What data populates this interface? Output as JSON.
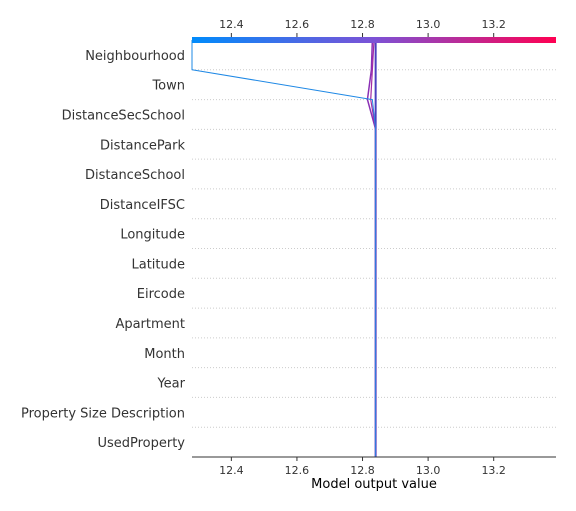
{
  "chart_data": {
    "type": "line",
    "title": "",
    "xlabel": "Model output value",
    "ylabel": "",
    "xlim": [
      12.28,
      13.39
    ],
    "xticks": [
      "12.4",
      "12.6",
      "12.8",
      "13.0",
      "13.2"
    ],
    "features": [
      "Neighbourhood",
      "Town",
      "DistanceSecSchool",
      "DistancePark",
      "DistanceSchool",
      "DistanceIFSC",
      "Longitude",
      "Latitude",
      "Eircode",
      "Apartment",
      "Month",
      "Year",
      "Property Size Description",
      "UsedProperty"
    ],
    "base_value": 12.84,
    "grid": "dotted-horizontal",
    "colorbar": {
      "position": "top",
      "low_color": "#008bfb",
      "mid_color": "#7c52d6",
      "high_color": "#ff0052"
    },
    "series": [
      {
        "values": [
          12.84,
          12.84,
          12.84,
          12.84,
          12.84,
          12.84,
          12.84,
          12.84,
          12.84,
          12.84,
          12.84,
          12.84,
          12.84,
          12.84,
          12.84
        ],
        "color": "#4b3fbf",
        "width": 2
      },
      {
        "values": [
          12.84,
          12.84,
          12.84,
          12.84,
          12.84,
          12.84,
          12.84,
          12.84,
          12.84,
          12.84,
          12.84,
          12.84,
          12.815,
          12.827,
          12.83
        ],
        "color": "#8a2fb5",
        "width": 1.5
      },
      {
        "values": [
          12.84,
          12.84,
          12.84,
          12.84,
          12.84,
          12.84,
          12.84,
          12.84,
          12.84,
          12.84,
          12.84,
          12.84,
          12.825,
          12.83,
          12.835
        ],
        "color": "#a32aa5",
        "width": 1.2
      },
      {
        "values": [
          12.84,
          12.84,
          12.84,
          12.84,
          12.84,
          12.84,
          12.84,
          12.84,
          12.84,
          12.84,
          12.84,
          12.84,
          12.83,
          12.28,
          12.28
        ],
        "color": "#1e88e5",
        "width": 1
      }
    ]
  }
}
